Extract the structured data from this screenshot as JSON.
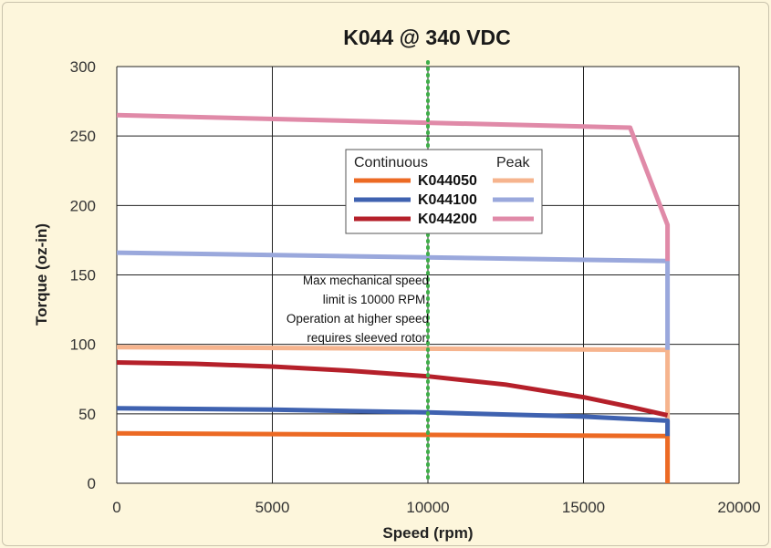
{
  "chart_data": {
    "type": "line",
    "title": "K044 @ 340 VDC",
    "xlabel": "Speed (rpm)",
    "ylabel": "Torque (oz-in)",
    "xlim": [
      0,
      20000
    ],
    "ylim": [
      0,
      300
    ],
    "xticks": [
      0,
      5000,
      10000,
      15000,
      20000
    ],
    "yticks": [
      0,
      50,
      100,
      150,
      200,
      250,
      300
    ],
    "grid": true,
    "legend": {
      "placement": "center",
      "continuous_label": "Continuous",
      "peak_label": "Peak",
      "entries": [
        "K044050",
        "K044100",
        "K044200"
      ]
    },
    "series": [
      {
        "name": "K044050",
        "kind": "Continuous",
        "color": "#ec6a24",
        "x": [
          0,
          17700,
          17700
        ],
        "y": [
          36,
          34,
          0
        ]
      },
      {
        "name": "K044050",
        "kind": "Peak",
        "color": "#f6b48e",
        "x": [
          0,
          17700,
          17700
        ],
        "y": [
          98,
          96,
          0
        ]
      },
      {
        "name": "K044100",
        "kind": "Continuous",
        "color": "#3f62b0",
        "x": [
          0,
          5000,
          10000,
          15000,
          17700,
          17700
        ],
        "y": [
          54,
          53,
          51,
          48,
          45,
          34
        ]
      },
      {
        "name": "K044100",
        "kind": "Peak",
        "color": "#9aa8dc",
        "x": [
          0,
          17700,
          17700
        ],
        "y": [
          166,
          160,
          96
        ]
      },
      {
        "name": "K044200",
        "kind": "Continuous",
        "color": "#b5202a",
        "x": [
          0,
          2500,
          5000,
          7500,
          10000,
          12500,
          15000,
          16500,
          17700
        ],
        "y": [
          87,
          86,
          84,
          81,
          77,
          71,
          62,
          55,
          49
        ]
      },
      {
        "name": "K044200",
        "kind": "Peak",
        "color": "#e08aa8",
        "x": [
          0,
          16500,
          17700,
          17700
        ],
        "y": [
          265,
          256,
          186,
          160
        ]
      }
    ],
    "annotations": [
      {
        "type": "vline",
        "x": 10000,
        "color": "#3fae49",
        "style": "dotted"
      },
      {
        "type": "text",
        "lines": [
          "Max mechanical speed",
          "limit is 10000 RPM.",
          "Operation at higher speed",
          "requires sleeved rotor."
        ]
      }
    ]
  }
}
